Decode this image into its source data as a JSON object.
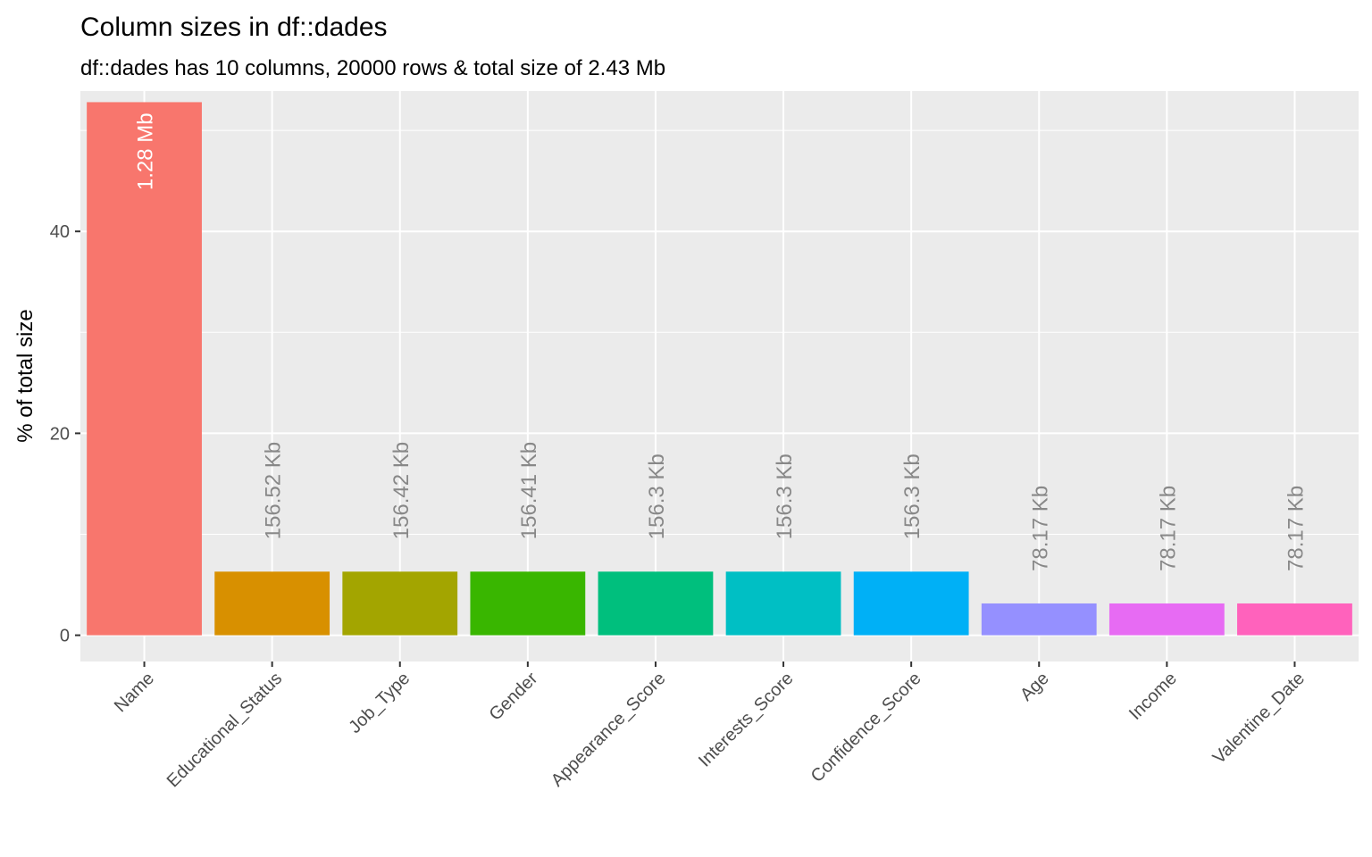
{
  "chart_data": {
    "type": "bar",
    "title": "Column sizes in df::dades",
    "subtitle": "df::dades has 10 columns, 20000 rows & total size of 2.43 Mb",
    "xlabel": "",
    "ylabel": "% of total size",
    "ylim": [
      -2.6,
      53.9
    ],
    "yticks": [
      0,
      20,
      40
    ],
    "grid": true,
    "legend": "none",
    "categories": [
      "Name",
      "Educational_Status",
      "Job_Type",
      "Gender",
      "Appearance_Score",
      "Interests_Score",
      "Confidence_Score",
      "Age",
      "Income",
      "Valentine_Date"
    ],
    "values": [
      52.8,
      6.3,
      6.3,
      6.3,
      6.3,
      6.3,
      6.3,
      3.15,
      3.15,
      3.15
    ],
    "data_labels": [
      "1.28 Mb",
      "156.52 Kb",
      "156.42 Kb",
      "156.41 Kb",
      "156.3 Kb",
      "156.3 Kb",
      "156.3 Kb",
      "78.17 Kb",
      "78.17 Kb",
      "78.17 Kb"
    ],
    "colors": [
      "#F8766D",
      "#D89000",
      "#A3A500",
      "#39B600",
      "#00BF7D",
      "#00BFC4",
      "#00B0F6",
      "#9590FF",
      "#E76BF3",
      "#FF62BC"
    ],
    "panel_background": "#EBEBEB",
    "grid_color": "#FFFFFF",
    "label_inside_color": "#FFFFFF",
    "label_outside_color": "#888888"
  }
}
